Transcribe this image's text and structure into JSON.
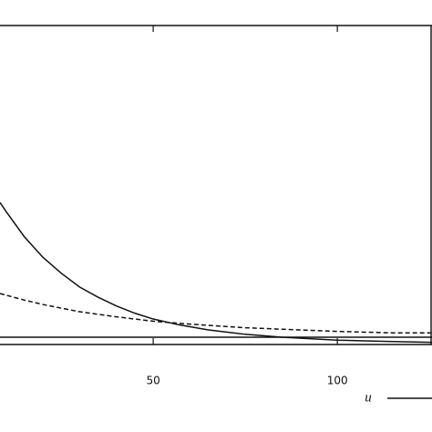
{
  "chart_data": {
    "type": "line",
    "xlim": [
      8.4,
      125.7
    ],
    "xticks": [
      50,
      100
    ],
    "ylim": [
      -0.1,
      4.28
    ],
    "reference_line": 0,
    "series": [
      {
        "name": "u",
        "color": "#111111",
        "linestyle": "solid",
        "x": [
          8.4,
          10,
          15,
          20,
          25,
          30,
          35,
          40,
          45,
          50,
          57,
          65,
          75,
          85,
          100,
          115,
          125.7
        ],
        "values": [
          1.85,
          1.73,
          1.38,
          1.1,
          0.88,
          0.69,
          0.55,
          0.43,
          0.33,
          0.25,
          0.17,
          0.1,
          0.04,
          0.0,
          -0.04,
          -0.06,
          -0.07
        ]
      },
      {
        "color": "#111111",
        "linestyle": "dashed",
        "x": [
          8.4,
          15,
          20,
          30,
          40,
          50,
          60,
          75,
          90,
          100,
          115,
          125.7
        ],
        "values": [
          0.6,
          0.51,
          0.45,
          0.35,
          0.28,
          0.22,
          0.18,
          0.13,
          0.1,
          0.08,
          0.06,
          0.06
        ]
      }
    ]
  }
}
